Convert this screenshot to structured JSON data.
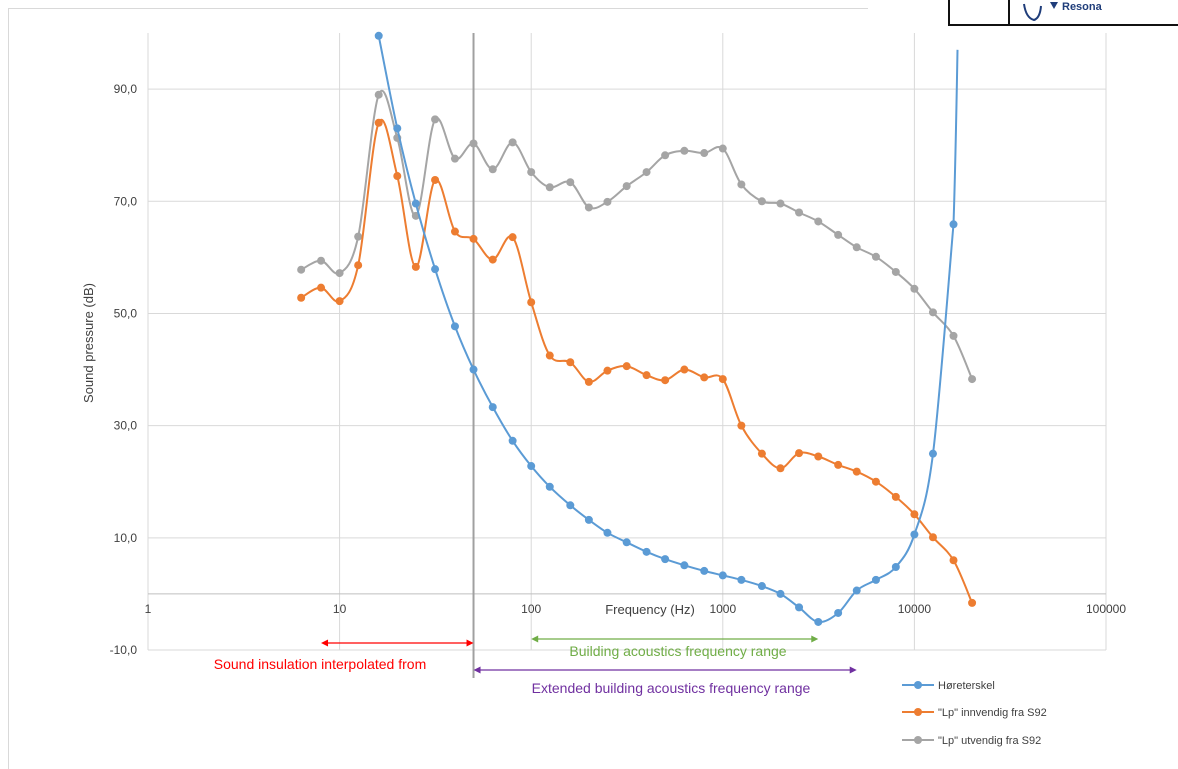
{
  "logo": {
    "fragment_text": "Resona"
  },
  "chart_data": {
    "type": "line",
    "title": "",
    "xlabel": "Frequency (Hz)",
    "ylabel": "Sound pressure (dB)",
    "x_scale": "log",
    "xlim": [
      1,
      100000
    ],
    "ylim": [
      -10,
      100
    ],
    "x_ticks": [
      1,
      10,
      100,
      1000,
      10000,
      100000
    ],
    "x_tick_labels": [
      "1",
      "10",
      "100",
      "1000",
      "10000",
      "100000"
    ],
    "y_ticks": [
      -10,
      10,
      30,
      50,
      70,
      90
    ],
    "y_tick_labels": [
      "-10,0",
      "10,0",
      "30,0",
      "50,0",
      "70,0",
      "90,0"
    ],
    "grid": true,
    "legend_position": "bottom-right",
    "series": [
      {
        "name": "Høreterskel",
        "color": "#5b9bd5",
        "x": [
          16,
          20,
          25,
          31.5,
          40,
          50,
          63,
          80,
          100,
          125,
          160,
          200,
          250,
          315,
          400,
          500,
          630,
          800,
          1000,
          1250,
          1600,
          2000,
          2500,
          3150,
          4000,
          5000,
          6300,
          8000,
          10000,
          12500,
          16000
        ],
        "y": [
          99.5,
          83.0,
          69.6,
          57.9,
          47.7,
          40.0,
          33.3,
          27.3,
          22.8,
          19.1,
          15.8,
          13.2,
          10.9,
          9.2,
          7.5,
          6.2,
          5.1,
          4.1,
          3.3,
          2.5,
          1.4,
          0.0,
          -2.4,
          -5.0,
          -3.4,
          0.6,
          2.5,
          4.8,
          10.6,
          25.0,
          65.9
        ]
      },
      {
        "name": "\"Lp\" innvendig fra S92",
        "color": "#ed7d31",
        "x": [
          6.3,
          8,
          10,
          12.5,
          16,
          20,
          25,
          31.5,
          40,
          50,
          63,
          80,
          100,
          125,
          160,
          200,
          250,
          315,
          400,
          500,
          630,
          800,
          1000,
          1250,
          1600,
          2000,
          2500,
          3150,
          4000,
          5000,
          6300,
          8000,
          10000,
          12500,
          16000,
          20000
        ],
        "y": [
          52.8,
          54.6,
          52.2,
          58.6,
          84.0,
          74.5,
          58.3,
          73.8,
          64.6,
          63.3,
          59.6,
          63.6,
          52.0,
          42.5,
          41.3,
          37.8,
          39.8,
          40.6,
          39.0,
          38.1,
          40.0,
          38.6,
          38.3,
          30.0,
          25.0,
          22.4,
          25.1,
          24.5,
          23.0,
          21.8,
          20.0,
          17.3,
          14.2,
          10.1,
          6.0,
          -1.6
        ]
      },
      {
        "name": "\"Lp\" utvendig fra S92",
        "color": "#a5a5a5",
        "x": [
          6.3,
          8,
          10,
          12.5,
          16,
          20,
          25,
          31.5,
          40,
          50,
          63,
          80,
          100,
          125,
          160,
          200,
          250,
          315,
          400,
          500,
          630,
          800,
          1000,
          1250,
          1600,
          2000,
          2500,
          3150,
          4000,
          5000,
          6300,
          8000,
          10000,
          12500,
          16000,
          20000
        ],
        "y": [
          57.8,
          59.4,
          57.2,
          63.7,
          89.0,
          81.3,
          67.4,
          84.6,
          77.6,
          80.3,
          75.7,
          80.5,
          75.2,
          72.5,
          73.4,
          68.9,
          69.9,
          72.7,
          75.2,
          78.2,
          79.0,
          78.6,
          79.4,
          73.0,
          70.0,
          69.6,
          68.0,
          66.4,
          64.0,
          61.8,
          60.1,
          57.4,
          54.4,
          50.2,
          46.0,
          38.3
        ]
      }
    ],
    "marker_line": {
      "x": 50
    },
    "annotations": [
      {
        "text": "Sound insulation interpolated from",
        "color": "#ff0000",
        "x_from": 8,
        "x_to": 50
      },
      {
        "text": "Building acoustics frequency range",
        "color": "#70ad47",
        "x_from": 100,
        "x_to": 3150
      },
      {
        "text": "Extended building acoustics frequency range",
        "color": "#7030a0",
        "x_from": 50,
        "x_to": 5000
      }
    ]
  }
}
